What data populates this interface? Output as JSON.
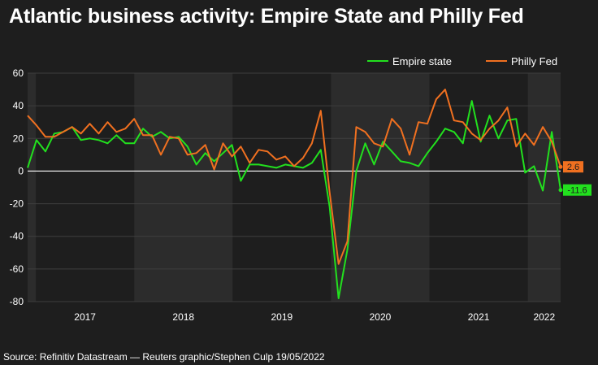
{
  "title": "Atlantic business activity: Empire State and Philly Fed",
  "source": "Source: Refinitiv Datastream — Reuters graphic/Stephen Culp 19/05/2022",
  "colors": {
    "background": "#1e1e1e",
    "band": "#2c2c2c",
    "empire": "#22e01e",
    "philly": "#f07020",
    "zero_line": "#ffffff",
    "grid": "#3e3e3e"
  },
  "chart_data": {
    "type": "line",
    "title": "Atlantic business activity: Empire State and Philly Fed",
    "xlabel": "",
    "ylabel": "",
    "ylim": [
      -80,
      60
    ],
    "yticks": [
      60,
      40,
      20,
      0,
      -20,
      -40,
      -60,
      -80
    ],
    "xtick_labels": [
      "2017",
      "2018",
      "2019",
      "2020",
      "2021",
      "2022"
    ],
    "grid": true,
    "legend_position": "top-right",
    "x_start": "2016-12",
    "x_end": "2022-05",
    "series": [
      {
        "name": "Empire state",
        "color": "#22e01e",
        "end_label": "-11.6",
        "values": [
          2,
          19,
          12,
          23,
          24,
          27,
          19,
          20,
          19,
          17,
          22,
          17,
          17,
          26,
          21,
          24,
          20,
          21,
          15,
          4,
          11,
          6,
          11,
          16,
          -6,
          4,
          4,
          3,
          2,
          4,
          3,
          2,
          5,
          13,
          -22,
          -78,
          -48,
          0,
          17,
          4,
          18,
          12,
          6,
          5,
          3,
          11,
          18,
          26,
          24,
          17,
          43,
          18,
          34,
          20,
          31,
          32,
          -1,
          3,
          -12,
          24,
          -11.6
        ]
      },
      {
        "name": "Philly Fed",
        "color": "#f07020",
        "end_label": "2.6",
        "values": [
          34,
          28,
          21,
          21,
          24,
          27,
          23,
          29,
          23,
          30,
          24,
          26,
          32,
          22,
          22,
          10,
          21,
          20,
          10,
          11,
          16,
          1,
          17,
          9,
          15,
          5,
          13,
          12,
          7,
          9,
          3,
          8,
          17,
          37,
          -13,
          -57,
          -43,
          27,
          24,
          17,
          15,
          32,
          26,
          10,
          30,
          29,
          44,
          50,
          31,
          30,
          23,
          19,
          26,
          31,
          39,
          15,
          23,
          16,
          27,
          18,
          2.6
        ]
      }
    ]
  }
}
